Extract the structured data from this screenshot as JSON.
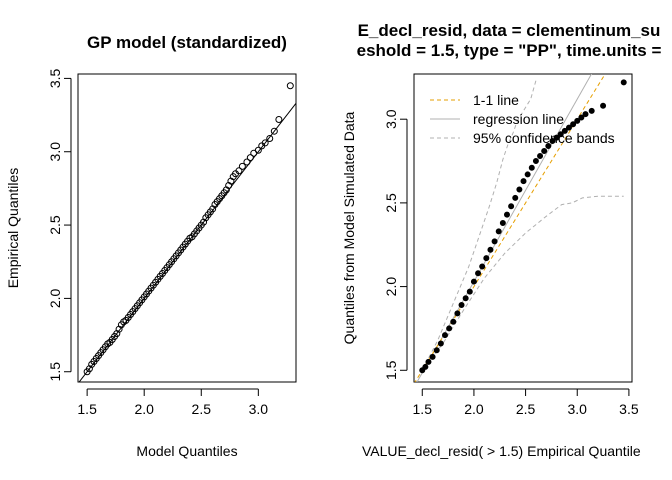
{
  "chart_data": [
    {
      "type": "scatter",
      "title": "GP model (standardized)",
      "xlabel": "Model Quantiles",
      "ylabel": "Empirical Quantiles",
      "xlim": [
        1.42,
        3.33
      ],
      "ylim": [
        1.43,
        3.53
      ],
      "xticks": [
        "1.5",
        "2.0",
        "2.5",
        "3.0"
      ],
      "xtick_values": [
        1.5,
        2.0,
        2.5,
        3.0
      ],
      "yticks": [
        "1.5",
        "2.0",
        "2.5",
        "3.0",
        "3.5"
      ],
      "ytick_values": [
        1.5,
        2.0,
        2.5,
        3.0,
        3.5
      ],
      "marker": "open-circle",
      "reference_line": {
        "intercept": 0,
        "slope": 1
      },
      "series": [
        {
          "x": [
            1.5,
            1.52,
            1.54,
            1.56,
            1.58,
            1.6,
            1.62,
            1.64,
            1.66,
            1.68,
            1.7,
            1.72,
            1.74,
            1.76,
            1.78,
            1.8,
            1.82,
            1.84,
            1.86,
            1.88,
            1.9,
            1.92,
            1.94,
            1.96,
            1.98,
            2.0,
            2.02,
            2.04,
            2.06,
            2.08,
            2.1,
            2.12,
            2.14,
            2.16,
            2.18,
            2.2,
            2.22,
            2.24,
            2.26,
            2.28,
            2.3,
            2.32,
            2.34,
            2.36,
            2.38,
            2.4,
            2.42,
            2.44,
            2.46,
            2.48,
            2.5,
            2.52,
            2.54,
            2.56,
            2.58,
            2.6,
            2.62,
            2.64,
            2.66,
            2.68,
            2.7,
            2.72,
            2.74,
            2.76,
            2.78,
            2.8,
            2.83,
            2.86,
            2.9,
            2.93,
            2.96,
            3.0,
            3.03,
            3.06,
            3.1,
            3.14,
            3.18,
            3.28
          ],
          "y": [
            1.5,
            1.52,
            1.55,
            1.57,
            1.59,
            1.61,
            1.63,
            1.65,
            1.67,
            1.69,
            1.7,
            1.72,
            1.74,
            1.76,
            1.79,
            1.82,
            1.84,
            1.85,
            1.87,
            1.89,
            1.91,
            1.93,
            1.95,
            1.97,
            1.99,
            2.01,
            2.03,
            2.05,
            2.07,
            2.09,
            2.11,
            2.13,
            2.15,
            2.17,
            2.19,
            2.21,
            2.23,
            2.25,
            2.27,
            2.29,
            2.31,
            2.33,
            2.35,
            2.37,
            2.39,
            2.41,
            2.42,
            2.44,
            2.46,
            2.48,
            2.5,
            2.52,
            2.55,
            2.57,
            2.59,
            2.61,
            2.64,
            2.66,
            2.68,
            2.7,
            2.72,
            2.74,
            2.77,
            2.8,
            2.83,
            2.85,
            2.87,
            2.9,
            2.93,
            2.96,
            2.99,
            3.01,
            3.04,
            3.06,
            3.09,
            3.14,
            3.22,
            3.45
          ]
        }
      ]
    },
    {
      "type": "scatter",
      "title_line1": "E_decl_resid, data = clementinum_su",
      "title_line2": "eshold = 1.5, type = \"PP\", time.units =",
      "xlabel": "VALUE_decl_resid( > 1.5) Empirical Quantile",
      "ylabel": "Quantiles from Model Simulated Data",
      "xlim": [
        1.42,
        3.53
      ],
      "ylim": [
        1.43,
        3.27
      ],
      "xticks": [
        "1.5",
        "2.0",
        "2.5",
        "3.0",
        "3.5"
      ],
      "xtick_values": [
        1.5,
        2.0,
        2.5,
        3.0,
        3.5
      ],
      "yticks": [
        "1.5",
        "2.0",
        "2.5",
        "3.0"
      ],
      "ytick_values": [
        1.5,
        2.0,
        2.5,
        3.0
      ],
      "legend": {
        "placement": "top-left",
        "items": [
          {
            "label": "1-1 line",
            "color": "#e69f00",
            "style": "dashed"
          },
          {
            "label": "regression line",
            "color": "#b0b0b0",
            "style": "solid"
          },
          {
            "label": "95% confidence bands",
            "color": "#b0b0b0",
            "style": "dashed"
          }
        ]
      },
      "one_to_one": {
        "intercept": 0,
        "slope": 1,
        "color": "#e69f00"
      },
      "regression": {
        "intercept": -0.15,
        "slope": 1.09,
        "color": "#b0b0b0"
      },
      "upper_band": {
        "x": [
          1.5,
          1.65,
          1.8,
          1.95,
          2.05,
          2.15,
          2.22,
          2.28,
          2.33,
          2.38,
          2.42,
          2.48,
          2.55,
          2.6
        ],
        "y": [
          1.5,
          1.68,
          1.9,
          2.12,
          2.3,
          2.48,
          2.62,
          2.76,
          2.85,
          2.92,
          2.99,
          3.05,
          3.12,
          3.23
        ]
      },
      "lower_band": {
        "x": [
          1.5,
          1.7,
          1.9,
          2.1,
          2.3,
          2.5,
          2.7,
          2.85,
          2.95,
          3.05,
          3.2,
          3.35,
          3.45
        ],
        "y": [
          1.5,
          1.66,
          1.86,
          2.05,
          2.2,
          2.32,
          2.42,
          2.49,
          2.5,
          2.53,
          2.54,
          2.54,
          2.54
        ]
      },
      "series": [
        {
          "x": [
            1.5,
            1.53,
            1.56,
            1.6,
            1.64,
            1.68,
            1.72,
            1.76,
            1.8,
            1.84,
            1.88,
            1.92,
            1.96,
            2.0,
            2.04,
            2.08,
            2.12,
            2.16,
            2.2,
            2.24,
            2.28,
            2.32,
            2.36,
            2.4,
            2.44,
            2.48,
            2.52,
            2.56,
            2.6,
            2.64,
            2.68,
            2.72,
            2.76,
            2.8,
            2.84,
            2.88,
            2.92,
            2.96,
            3.0,
            3.04,
            3.08,
            3.14,
            3.25,
            3.45
          ],
          "y": [
            1.5,
            1.52,
            1.55,
            1.58,
            1.62,
            1.66,
            1.71,
            1.75,
            1.79,
            1.84,
            1.89,
            1.93,
            1.97,
            2.03,
            2.08,
            2.12,
            2.17,
            2.22,
            2.27,
            2.33,
            2.38,
            2.43,
            2.48,
            2.53,
            2.58,
            2.63,
            2.67,
            2.71,
            2.75,
            2.78,
            2.81,
            2.84,
            2.87,
            2.89,
            2.91,
            2.93,
            2.95,
            2.97,
            2.99,
            3.01,
            3.03,
            3.05,
            3.08,
            3.22
          ]
        }
      ]
    }
  ]
}
